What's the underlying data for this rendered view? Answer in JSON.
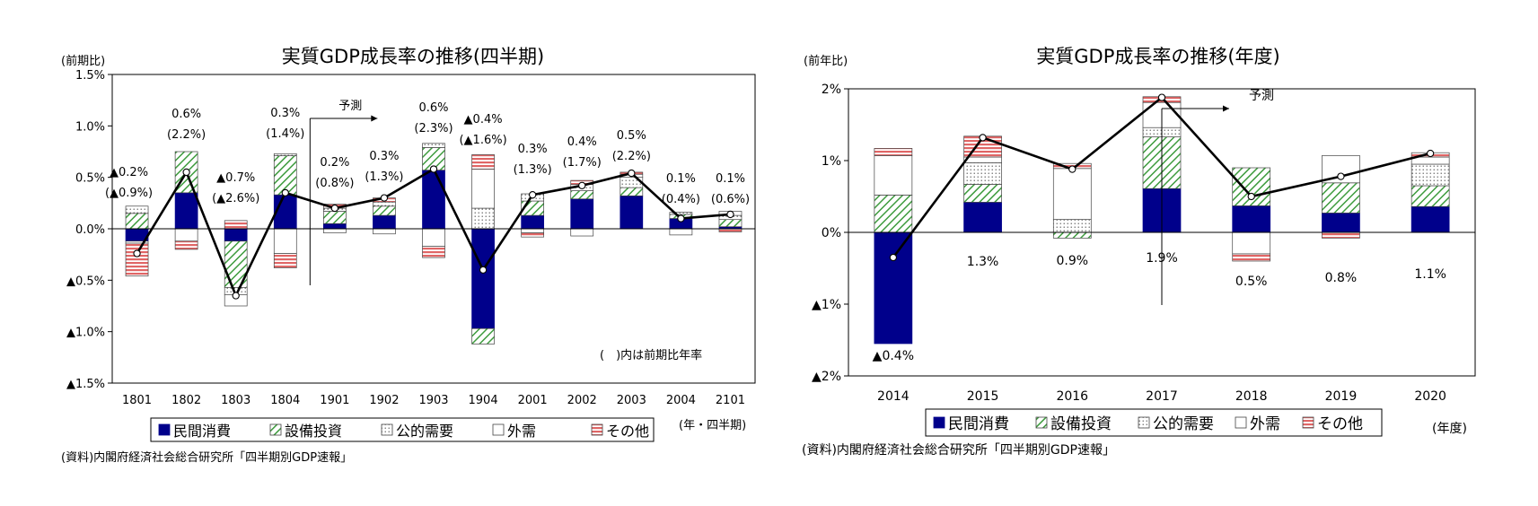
{
  "chart_data": [
    {
      "type": "bar",
      "title": "実質GDP成長率の推移(四半期)",
      "ylabel": "(前期比)",
      "xlabel": "(年・四半期)",
      "source": "(資料)内閣府経済社会総合研究所「四半期別GDP速報」",
      "ylim": [
        -1.5,
        1.5
      ],
      "yticks": [
        "▲1.5%",
        "▲1.0%",
        "▲0.5%",
        "0.0%",
        "0.5%",
        "1.0%",
        "1.5%"
      ],
      "categories": [
        "1801",
        "1802",
        "1803",
        "1804",
        "1901",
        "1902",
        "1903",
        "1904",
        "2001",
        "2002",
        "2003",
        "2004",
        "2101"
      ],
      "series": [
        {
          "name": "民間消費",
          "values": [
            -0.12,
            0.35,
            -0.12,
            0.33,
            0.05,
            0.13,
            0.57,
            -0.97,
            0.13,
            0.29,
            0.32,
            0.1,
            0.02
          ]
        },
        {
          "name": "設備投資",
          "values": [
            0.15,
            0.4,
            -0.45,
            0.38,
            0.12,
            0.09,
            0.22,
            -0.15,
            0.14,
            0.08,
            0.08,
            0.04,
            0.07
          ]
        },
        {
          "name": "公的需要",
          "values": [
            0.07,
            0.0,
            -0.07,
            0.02,
            0.03,
            0.04,
            0.04,
            0.2,
            0.07,
            0.06,
            0.1,
            0.02,
            0.04
          ]
        },
        {
          "name": "外需",
          "values": [
            -0.02,
            -0.12,
            -0.11,
            -0.24,
            -0.04,
            -0.05,
            -0.17,
            0.38,
            -0.04,
            -0.07,
            0.03,
            -0.06,
            0.04
          ]
        },
        {
          "name": "その他",
          "values": [
            -0.32,
            -0.08,
            0.08,
            -0.14,
            0.04,
            0.04,
            -0.11,
            0.14,
            -0.04,
            0.04,
            0.02,
            0.0,
            -0.03
          ]
        }
      ],
      "line": {
        "name": "実質GDP",
        "values": [
          -0.24,
          0.55,
          -0.65,
          0.35,
          0.2,
          0.3,
          0.58,
          -0.4,
          0.33,
          0.42,
          0.54,
          0.1,
          0.14
        ]
      },
      "labels": [
        [
          "▲0.2%",
          "(▲0.9%)"
        ],
        [
          "0.6%",
          "(2.2%)"
        ],
        [
          "▲0.7%",
          "(▲2.6%)"
        ],
        [
          "0.3%",
          "(1.4%)"
        ],
        [
          "0.2%",
          "(0.8%)"
        ],
        [
          "0.3%",
          "(1.3%)"
        ],
        [
          "0.6%",
          "(2.3%)"
        ],
        [
          "▲0.4%",
          "(▲1.6%)"
        ],
        [
          "0.3%",
          "(1.3%)"
        ],
        [
          "0.4%",
          "(1.7%)"
        ],
        [
          "0.5%",
          "(2.2%)"
        ],
        [
          "0.1%",
          "(0.4%)"
        ],
        [
          "0.1%",
          "(0.6%)"
        ]
      ],
      "forecast_label": "予測",
      "note": "(　)内は前期比年率",
      "legend": [
        "民間消費",
        "設備投資",
        "公的需要",
        "外需",
        "その他"
      ]
    },
    {
      "type": "bar",
      "title": "実質GDP成長率の推移(年度)",
      "ylabel": "(前年比)",
      "xlabel": "(年度)",
      "source": "(資料)内閣府経済社会総合研究所「四半期別GDP速報」",
      "ylim": [
        -2,
        2
      ],
      "yticks": [
        "▲2%",
        "▲1%",
        "0%",
        "1%",
        "2%"
      ],
      "categories": [
        "2014",
        "2015",
        "2016",
        "2017",
        "2018",
        "2019",
        "2020"
      ],
      "series": [
        {
          "name": "民間消費",
          "values": [
            -1.55,
            0.42,
            0.0,
            0.61,
            0.37,
            0.27,
            0.36
          ]
        },
        {
          "name": "設備投資",
          "values": [
            0.52,
            0.25,
            -0.08,
            0.72,
            0.53,
            0.42,
            0.29
          ]
        },
        {
          "name": "公的需要",
          "values": [
            0.0,
            0.3,
            0.18,
            0.13,
            0.0,
            0.0,
            0.3
          ]
        },
        {
          "name": "外需",
          "values": [
            0.55,
            0.08,
            0.71,
            0.35,
            -0.3,
            0.38,
            0.1
          ]
        },
        {
          "name": "その他",
          "values": [
            0.1,
            0.29,
            0.07,
            0.08,
            -0.1,
            -0.08,
            0.06
          ]
        }
      ],
      "line": {
        "name": "実質GDP",
        "values": [
          -0.35,
          1.32,
          0.88,
          1.88,
          0.5,
          0.78,
          1.1
        ]
      },
      "labels": [
        "▲0.4%",
        "1.3%",
        "0.9%",
        "1.9%",
        "0.5%",
        "0.8%",
        "1.1%"
      ],
      "forecast_label": "予測",
      "legend": [
        "民間消費",
        "設備投資",
        "公的需要",
        "外需",
        "その他"
      ]
    }
  ],
  "colors": {
    "consumption": "#00008b",
    "investment_stripe": "#3d9b3d",
    "other_stripe": "#e06666",
    "line": "#000000"
  }
}
